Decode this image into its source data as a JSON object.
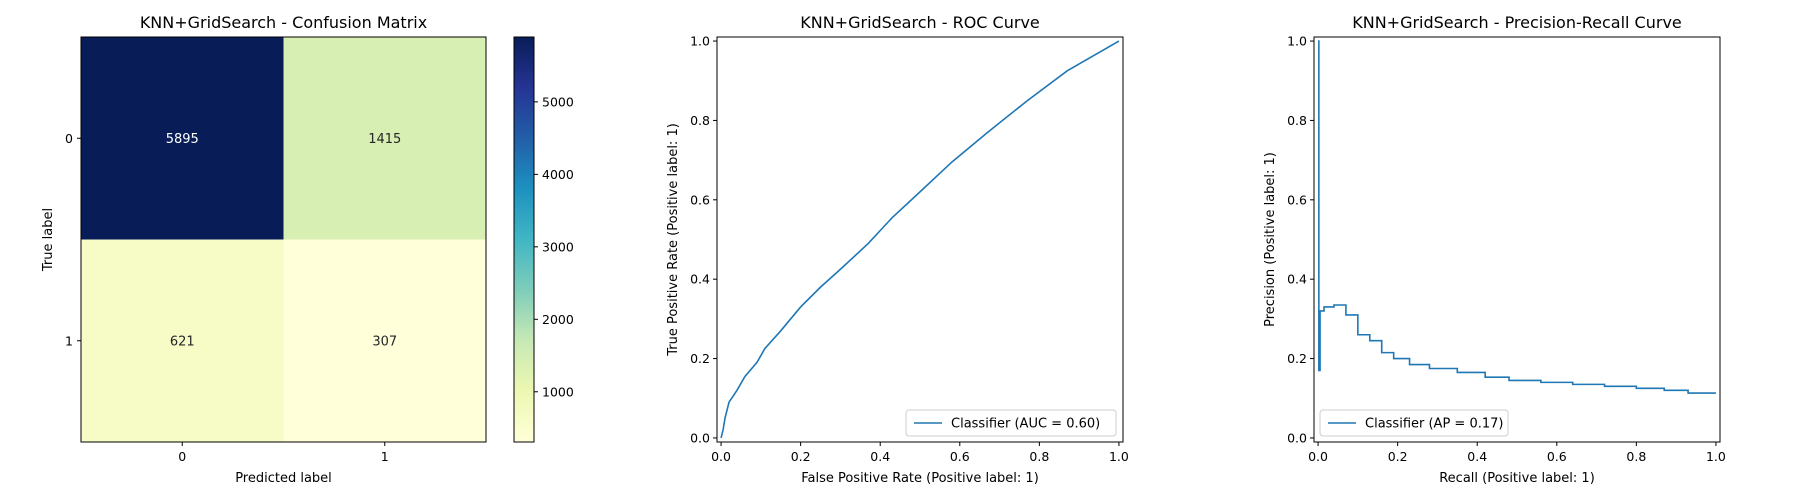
{
  "chart_data": [
    {
      "type": "heatmap",
      "title": "KNN+GridSearch - Confusion Matrix",
      "xlabel": "Predicted label",
      "ylabel": "True label",
      "x_categories": [
        "0",
        "1"
      ],
      "y_categories": [
        "0",
        "1"
      ],
      "values": [
        [
          5895,
          1415
        ],
        [
          621,
          307
        ]
      ],
      "colormap": "YlGnBu",
      "colorbar": {
        "min": 307,
        "max": 5895,
        "ticks": [
          1000,
          2000,
          3000,
          4000,
          5000
        ],
        "tick_labels": [
          "1000",
          "2000",
          "3000",
          "4000",
          "5000"
        ]
      }
    },
    {
      "type": "line",
      "title": "KNN+GridSearch - ROC Curve",
      "xlabel": "False Positive Rate (Positive label: 1)",
      "ylabel": "True Positive Rate (Positive label: 1)",
      "xlim": [
        0.0,
        1.0
      ],
      "ylim": [
        0.0,
        1.0
      ],
      "xticks": [
        0.0,
        0.2,
        0.4,
        0.6,
        0.8,
        1.0
      ],
      "yticks": [
        0.0,
        0.2,
        0.4,
        0.6,
        0.8,
        1.0
      ],
      "xtick_labels": [
        "0.0",
        "0.2",
        "0.4",
        "0.6",
        "0.8",
        "1.0"
      ],
      "ytick_labels": [
        "0.0",
        "0.2",
        "0.4",
        "0.6",
        "0.8",
        "1.0"
      ],
      "grid": false,
      "legend": "lower-right",
      "series": [
        {
          "name": "Classifier (AUC = 0.60)",
          "color": "#1f77b4",
          "x": [
            0.0,
            0.005,
            0.01,
            0.02,
            0.04,
            0.06,
            0.09,
            0.11,
            0.15,
            0.2,
            0.25,
            0.3,
            0.37,
            0.43,
            0.5,
            0.58,
            0.67,
            0.77,
            0.87,
            1.0
          ],
          "y": [
            0.0,
            0.02,
            0.05,
            0.09,
            0.12,
            0.155,
            0.19,
            0.225,
            0.27,
            0.33,
            0.38,
            0.425,
            0.49,
            0.555,
            0.62,
            0.695,
            0.77,
            0.85,
            0.925,
            1.0
          ]
        }
      ]
    },
    {
      "type": "line",
      "title": "KNN+GridSearch - Precision-Recall Curve",
      "xlabel": "Recall (Positive label: 1)",
      "ylabel": "Precision (Positive label: 1)",
      "xlim": [
        0.0,
        1.0
      ],
      "ylim": [
        0.0,
        1.0
      ],
      "xticks": [
        0.0,
        0.2,
        0.4,
        0.6,
        0.8,
        1.0
      ],
      "yticks": [
        0.0,
        0.2,
        0.4,
        0.6,
        0.8,
        1.0
      ],
      "xtick_labels": [
        "0.0",
        "0.2",
        "0.4",
        "0.6",
        "0.8",
        "1.0"
      ],
      "ytick_labels": [
        "0.0",
        "0.2",
        "0.4",
        "0.6",
        "0.8",
        "1.0"
      ],
      "grid": false,
      "legend": "lower-left",
      "series": [
        {
          "name": "Classifier (AP = 0.17)",
          "color": "#1f77b4",
          "drawstyle": "steps",
          "x": [
            0.0,
            0.0,
            0.002,
            0.002,
            0.005,
            0.005,
            0.015,
            0.015,
            0.04,
            0.04,
            0.07,
            0.07,
            0.1,
            0.1,
            0.13,
            0.13,
            0.16,
            0.16,
            0.19,
            0.19,
            0.23,
            0.23,
            0.28,
            0.28,
            0.35,
            0.35,
            0.42,
            0.42,
            0.48,
            0.48,
            0.56,
            0.56,
            0.64,
            0.64,
            0.72,
            0.72,
            0.8,
            0.8,
            0.87,
            0.87,
            0.93,
            0.93,
            1.0
          ],
          "y": [
            1.0,
            1.0,
            1.0,
            0.17,
            0.17,
            0.32,
            0.32,
            0.33,
            0.33,
            0.335,
            0.335,
            0.31,
            0.31,
            0.26,
            0.26,
            0.245,
            0.245,
            0.215,
            0.215,
            0.2,
            0.2,
            0.185,
            0.185,
            0.175,
            0.175,
            0.165,
            0.165,
            0.153,
            0.153,
            0.145,
            0.145,
            0.14,
            0.14,
            0.135,
            0.135,
            0.13,
            0.13,
            0.125,
            0.125,
            0.12,
            0.12,
            0.113,
            0.113
          ]
        }
      ]
    }
  ]
}
